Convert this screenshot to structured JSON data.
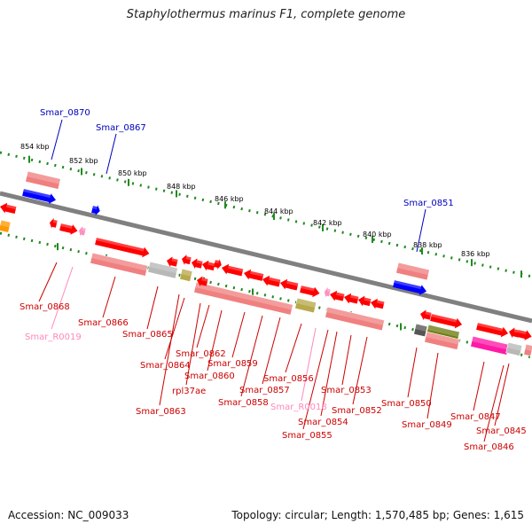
{
  "title": "Staphylothermus marinus F1, complete genome",
  "footer": {
    "accession": "Accession: NC_009033",
    "summary": "Topology: circular; Length: 1,570,485 bp; Genes: 1,615"
  },
  "colors": {
    "backbone": "#808080",
    "cds": "#ff0000",
    "cds_pink": "#f08080",
    "trna": "#ff8fc0",
    "blue": "#0000ff",
    "ticks": "#1f8a1f",
    "other_gray": "#b8b8b8",
    "olive": "#b8a94a",
    "magenta": "#ff1aa6",
    "label_red": "#cc0000",
    "label_blue": "#0000bb",
    "label_pink": "#ff88bb"
  },
  "scale_labels": [
    "854 kbp",
    "852 kbp",
    "850 kbp",
    "848 kbp",
    "846 kbp",
    "844 kbp",
    "842 kbp",
    "840 kbp",
    "838 kbp",
    "836 kbp"
  ],
  "gene_labels": [
    "Smar_0870",
    "Smar_0867",
    "Smar_0851",
    "Smar_0868",
    "Smar_R0019",
    "Smar_0866",
    "Smar_0865",
    "Smar_0862",
    "Smar_0864",
    "Smar_0860",
    "rpl37ae",
    "Smar_0863",
    "Smar_0859",
    "Smar_0857",
    "Smar_0858",
    "Smar_0856",
    "Smar_R0018",
    "Smar_0854",
    "Smar_0855",
    "Smar_0853",
    "Smar_0852",
    "Smar_0850",
    "Smar_0849",
    "Smar_0847",
    "Smar_0845",
    "Smar_0846"
  ]
}
